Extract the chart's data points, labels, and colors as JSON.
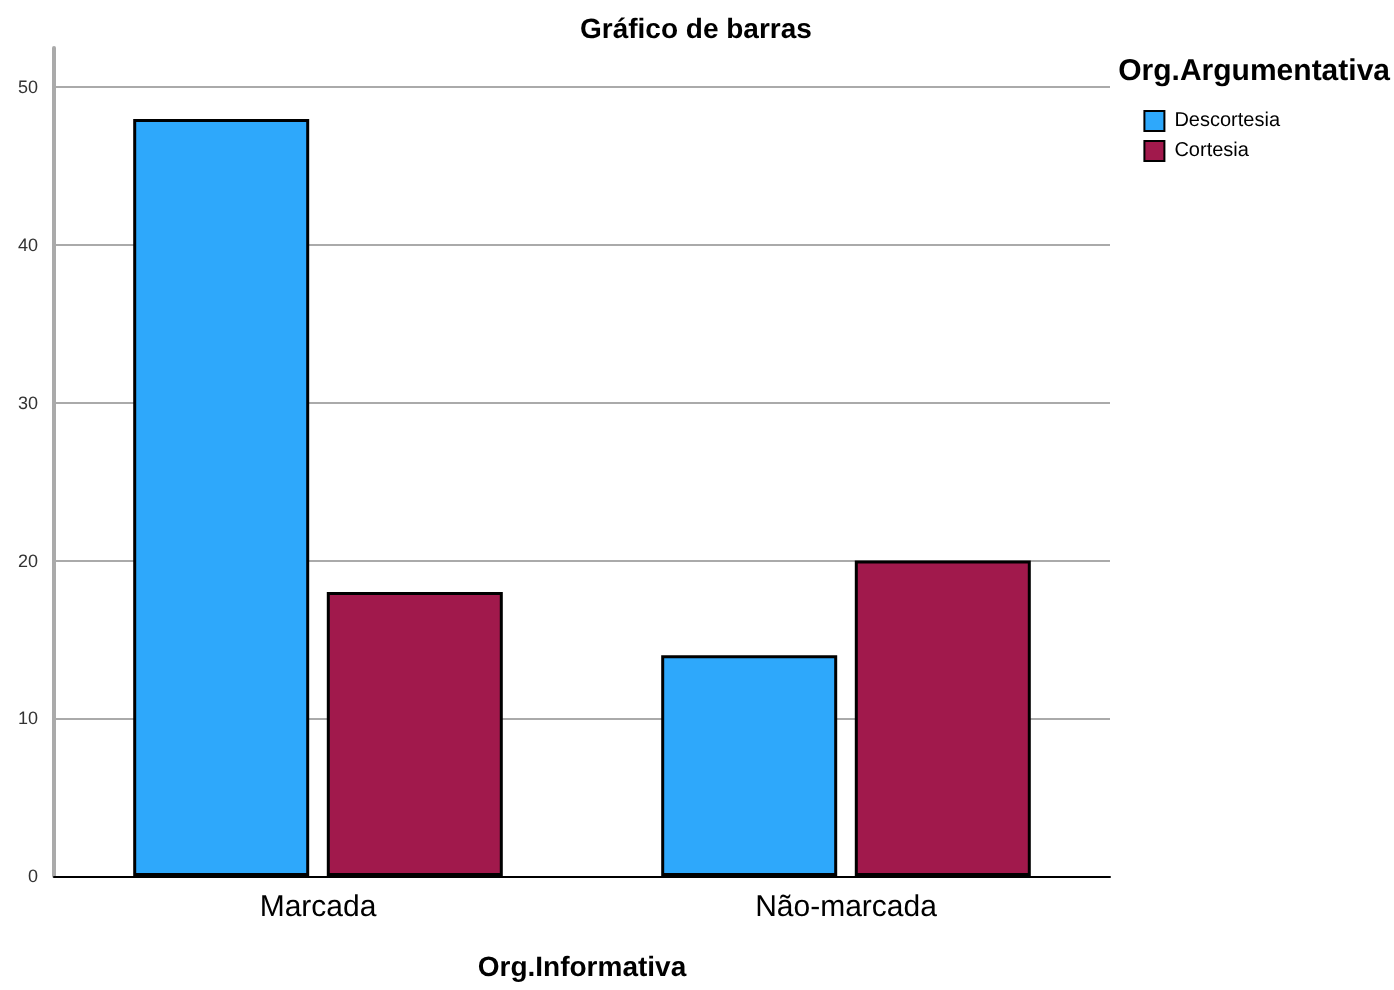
{
  "chart_data": {
    "type": "bar",
    "title": "Gráfico de barras",
    "xlabel": "Org.Informativa",
    "legend_title": "Org.Argumentativa",
    "categories": [
      "Marcada",
      "Não-marcada"
    ],
    "series": [
      {
        "name": "Descortesia",
        "color": "#2ea8fb",
        "values": [
          48,
          14
        ]
      },
      {
        "name": "Cortesia",
        "color": "#a1194c",
        "values": [
          18,
          20
        ]
      }
    ],
    "ylim": [
      0,
      52.5
    ],
    "yticks": [
      0,
      10,
      20,
      30,
      40,
      50
    ],
    "grid": "y",
    "legend": "top right"
  }
}
